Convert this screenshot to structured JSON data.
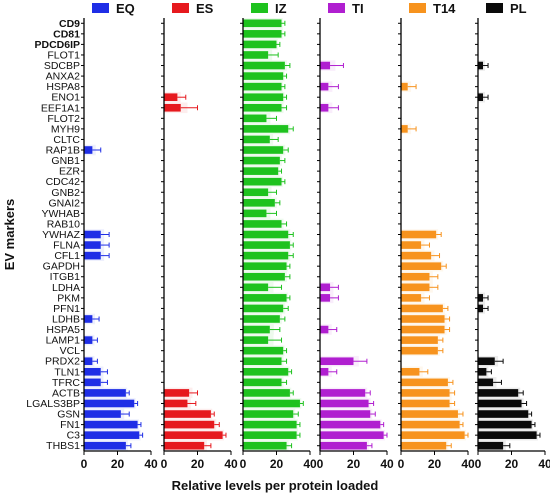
{
  "chart_data": {
    "type": "bar",
    "orientation": "horizontal",
    "ylabel": "EV markers",
    "xlabel": "Relative levels per protein loaded",
    "xlim": [
      0,
      40
    ],
    "xticks": [
      "0",
      "20",
      "40"
    ],
    "bold_categories": [
      "CD9",
      "CD81",
      "PDCD6IP"
    ],
    "categories": [
      "CD9",
      "CD81",
      "PDCD6IP",
      "FLOT1",
      "SDCBP",
      "ANXA2",
      "HSPA8",
      "ENO1",
      "EEF1A1",
      "FLOT2",
      "MYH9",
      "CLTC",
      "RAP1B",
      "GNB1",
      "EZR",
      "CDC42",
      "GNB2",
      "GNAI2",
      "YWHAB",
      "RAB10",
      "YWHAZ",
      "FLNA",
      "CFL1",
      "GAPDH",
      "ITGB1",
      "LDHA",
      "PKM",
      "PFN1",
      "LDHB",
      "HSPA5",
      "LAMP1",
      "VCL",
      "PRDX2",
      "TLN1",
      "TFRC",
      "ACTB",
      "LGALS3BP",
      "GSN",
      "FN1",
      "C3",
      "THBS1"
    ],
    "series": [
      {
        "name": "EQ",
        "color": "#1f2ee6",
        "values": [
          0,
          0,
          0,
          0,
          0,
          0,
          0,
          0,
          0,
          0,
          0,
          0,
          5,
          0,
          0,
          0,
          0,
          0,
          0,
          0,
          10,
          10,
          10,
          0,
          0,
          0,
          0,
          0,
          5,
          0,
          5,
          0,
          5,
          10,
          10,
          25,
          30,
          22,
          32,
          33,
          25
        ],
        "errors": [
          0,
          0,
          0,
          0,
          0,
          0,
          0,
          0,
          0,
          0,
          0,
          0,
          5,
          0,
          0,
          0,
          0,
          0,
          0,
          0,
          5,
          5,
          5,
          0,
          0,
          0,
          0,
          0,
          4,
          0,
          3,
          0,
          3,
          4,
          4,
          2,
          2,
          5,
          2,
          2,
          3
        ]
      },
      {
        "name": "ES",
        "color": "#e6191e",
        "values": [
          0,
          0,
          0,
          0,
          0,
          0,
          0,
          8,
          10,
          0,
          0,
          0,
          0,
          0,
          0,
          0,
          0,
          0,
          0,
          0,
          0,
          0,
          0,
          0,
          0,
          0,
          0,
          0,
          0,
          0,
          0,
          0,
          0,
          0,
          0,
          15,
          14,
          28,
          30,
          35,
          24
        ],
        "errors": [
          0,
          0,
          0,
          0,
          0,
          0,
          0,
          5,
          10,
          0,
          0,
          0,
          0,
          0,
          0,
          0,
          0,
          0,
          0,
          0,
          0,
          0,
          0,
          0,
          0,
          0,
          0,
          0,
          0,
          0,
          0,
          0,
          0,
          0,
          0,
          5,
          5,
          2,
          3,
          2,
          4
        ]
      },
      {
        "name": "IZ",
        "color": "#1ec21e",
        "values": [
          23,
          23,
          20,
          15,
          25,
          24,
          23,
          24,
          23,
          14,
          27,
          16,
          24,
          22,
          21,
          23,
          15,
          19,
          14,
          23,
          27,
          28,
          27,
          26,
          25,
          15,
          26,
          24,
          22,
          16,
          15,
          24,
          23,
          27,
          23,
          28,
          34,
          30,
          32,
          32,
          26
        ],
        "errors": [
          2,
          2,
          2,
          6,
          3,
          2,
          2,
          2,
          3,
          6,
          3,
          5,
          3,
          3,
          2,
          2,
          5,
          3,
          6,
          3,
          3,
          2,
          3,
          2,
          3,
          8,
          2,
          3,
          3,
          6,
          8,
          2,
          3,
          2,
          3,
          2,
          2,
          3,
          2,
          2,
          3
        ]
      },
      {
        "name": "TI",
        "color": "#b01fd0",
        "values": [
          0,
          0,
          0,
          0,
          6,
          0,
          5,
          0,
          5,
          0,
          0,
          0,
          0,
          0,
          0,
          0,
          0,
          0,
          0,
          0,
          0,
          0,
          0,
          0,
          0,
          6,
          6,
          0,
          0,
          5,
          0,
          0,
          20,
          5,
          0,
          27,
          29,
          30,
          36,
          38,
          28
        ],
        "errors": [
          0,
          0,
          0,
          0,
          8,
          0,
          6,
          0,
          6,
          0,
          0,
          0,
          0,
          0,
          0,
          0,
          0,
          0,
          0,
          0,
          0,
          0,
          0,
          0,
          0,
          5,
          5,
          0,
          0,
          5,
          0,
          0,
          8,
          5,
          0,
          3,
          3,
          3,
          2,
          2,
          3
        ]
      },
      {
        "name": "T14",
        "color": "#f7931e",
        "values": [
          0,
          0,
          0,
          0,
          0,
          0,
          4,
          0,
          0,
          0,
          4,
          0,
          0,
          0,
          0,
          0,
          0,
          0,
          0,
          0,
          21,
          12,
          18,
          24,
          17,
          17,
          12,
          25,
          26,
          26,
          22,
          22,
          0,
          11,
          28,
          29,
          29,
          34,
          35,
          38,
          27
        ],
        "errors": [
          0,
          0,
          0,
          0,
          0,
          0,
          5,
          0,
          0,
          0,
          5,
          0,
          0,
          0,
          0,
          0,
          0,
          0,
          0,
          0,
          3,
          5,
          5,
          3,
          5,
          5,
          5,
          3,
          3,
          3,
          3,
          3,
          0,
          5,
          3,
          3,
          3,
          3,
          2,
          2,
          3
        ]
      },
      {
        "name": "PL",
        "color": "#0a0a0a",
        "values": [
          0,
          0,
          0,
          0,
          3,
          0,
          0,
          3,
          0,
          0,
          0,
          0,
          0,
          0,
          0,
          0,
          0,
          0,
          0,
          0,
          0,
          0,
          0,
          0,
          0,
          0,
          3,
          3,
          0,
          0,
          0,
          0,
          10,
          5,
          9,
          24,
          26,
          30,
          32,
          35,
          15
        ],
        "errors": [
          0,
          0,
          0,
          0,
          3,
          0,
          0,
          3,
          0,
          0,
          0,
          0,
          0,
          0,
          0,
          0,
          0,
          0,
          0,
          0,
          0,
          0,
          0,
          0,
          0,
          0,
          3,
          3,
          0,
          0,
          0,
          0,
          5,
          3,
          5,
          3,
          3,
          2,
          2,
          2,
          4
        ]
      }
    ]
  }
}
